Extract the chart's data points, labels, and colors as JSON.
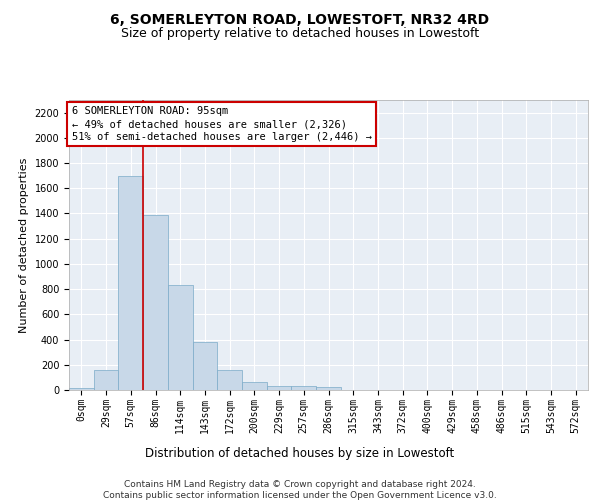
{
  "title": "6, SOMERLEYTON ROAD, LOWESTOFT, NR32 4RD",
  "subtitle": "Size of property relative to detached houses in Lowestoft",
  "xlabel": "Distribution of detached houses by size in Lowestoft",
  "ylabel": "Number of detached properties",
  "bar_color": "#c8d8e8",
  "bar_edge_color": "#7aaac8",
  "background_color": "#e8eef5",
  "grid_color": "#ffffff",
  "categories": [
    "0sqm",
    "29sqm",
    "57sqm",
    "86sqm",
    "114sqm",
    "143sqm",
    "172sqm",
    "200sqm",
    "229sqm",
    "257sqm",
    "286sqm",
    "315sqm",
    "343sqm",
    "372sqm",
    "400sqm",
    "429sqm",
    "458sqm",
    "486sqm",
    "515sqm",
    "543sqm",
    "572sqm"
  ],
  "values": [
    15,
    155,
    1700,
    1390,
    835,
    380,
    160,
    60,
    35,
    28,
    27,
    0,
    0,
    0,
    0,
    0,
    0,
    0,
    0,
    0,
    0
  ],
  "ylim": [
    0,
    2300
  ],
  "yticks": [
    0,
    200,
    400,
    600,
    800,
    1000,
    1200,
    1400,
    1600,
    1800,
    2000,
    2200
  ],
  "vline_x_index": 3,
  "annotation_text_line1": "6 SOMERLEYTON ROAD: 95sqm",
  "annotation_text_line2": "← 49% of detached houses are smaller (2,326)",
  "annotation_text_line3": "51% of semi-detached houses are larger (2,446) →",
  "annotation_box_color": "#ffffff",
  "annotation_border_color": "#cc0000",
  "footer_line1": "Contains HM Land Registry data © Crown copyright and database right 2024.",
  "footer_line2": "Contains public sector information licensed under the Open Government Licence v3.0.",
  "title_fontsize": 10,
  "subtitle_fontsize": 9,
  "xlabel_fontsize": 8.5,
  "ylabel_fontsize": 8,
  "tick_fontsize": 7,
  "footer_fontsize": 6.5,
  "annotation_fontsize": 7.5
}
